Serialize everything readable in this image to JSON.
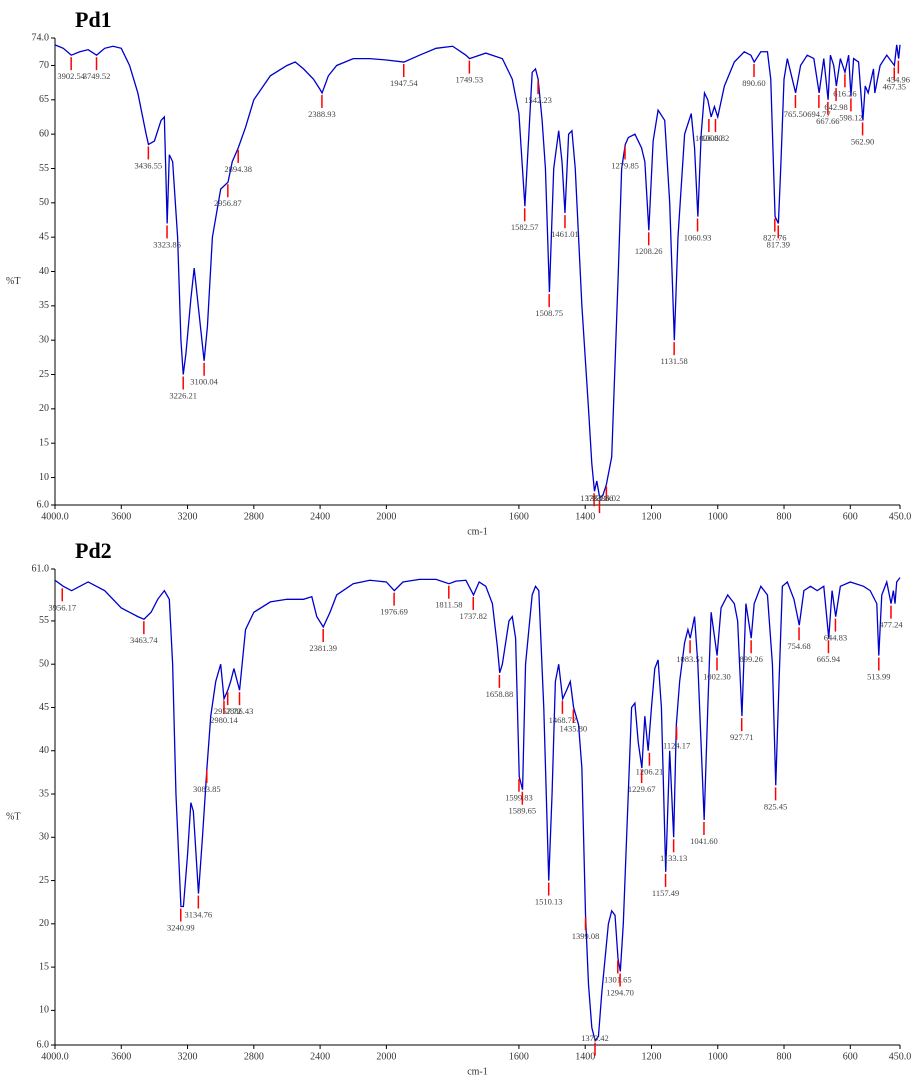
{
  "chart_data": [
    {
      "type": "line",
      "title": "Pd1",
      "x_label": "cm-1",
      "y_label": "%T",
      "color": "#0000cc",
      "peak_color": "#ff0000",
      "xlim": [
        4000,
        450
      ],
      "ylim": [
        6,
        74
      ],
      "x_scale_break": 2000,
      "x_scale_ratio_below_break": 2,
      "xticks": [
        {
          "value": 4000,
          "label": "4000.0"
        },
        3600,
        3200,
        2800,
        2400,
        2000,
        1600,
        1400,
        1200,
        1000,
        800,
        600,
        {
          "value": 450,
          "label": "450.0"
        }
      ],
      "yticks": [
        {
          "value": 6,
          "label": "6.0"
        },
        10,
        15,
        20,
        25,
        30,
        35,
        40,
        45,
        50,
        55,
        60,
        65,
        70,
        {
          "value": 74,
          "label": "74.0"
        }
      ],
      "x": [
        4000,
        3950,
        3902,
        3850,
        3800,
        3749,
        3700,
        3650,
        3600,
        3550,
        3500,
        3450,
        3436,
        3400,
        3360,
        3340,
        3323,
        3310,
        3290,
        3260,
        3240,
        3226,
        3210,
        3180,
        3160,
        3140,
        3100,
        3080,
        3050,
        3000,
        2956,
        2930,
        2894,
        2850,
        2800,
        2700,
        2600,
        2550,
        2500,
        2440,
        2400,
        2388,
        2350,
        2300,
        2200,
        2100,
        2000,
        1947,
        1900,
        1850,
        1800,
        1760,
        1749,
        1700,
        1650,
        1620,
        1600,
        1582,
        1570,
        1560,
        1550,
        1542,
        1530,
        1520,
        1508,
        1495,
        1480,
        1470,
        1461,
        1450,
        1440,
        1430,
        1410,
        1390,
        1380,
        1372,
        1365,
        1356,
        1346,
        1336,
        1320,
        1300,
        1290,
        1279,
        1270,
        1250,
        1230,
        1220,
        1208,
        1195,
        1180,
        1160,
        1145,
        1131,
        1120,
        1100,
        1080,
        1070,
        1060,
        1050,
        1040,
        1030,
        1020,
        1010,
        1000,
        980,
        950,
        920,
        900,
        890,
        870,
        850,
        840,
        827,
        817,
        810,
        800,
        790,
        780,
        765,
        750,
        730,
        710,
        694,
        680,
        667,
        660,
        650,
        642,
        630,
        616,
        605,
        598,
        590,
        575,
        562,
        555,
        546,
        530,
        526,
        510,
        490,
        467,
        460,
        454,
        450
      ],
      "values": [
        73,
        72.5,
        71.5,
        72,
        72.3,
        71.5,
        72.5,
        72.8,
        72.5,
        70,
        66,
        60,
        58.5,
        59,
        62,
        62.5,
        47,
        57,
        56,
        45,
        30,
        25,
        28,
        36,
        40.5,
        36,
        27,
        32,
        45,
        52,
        53,
        56,
        58,
        61,
        65,
        68.5,
        70,
        70.5,
        69.5,
        68,
        66.5,
        66,
        68.5,
        70,
        71,
        71,
        70.8,
        70.5,
        71.5,
        72.5,
        72.8,
        71.5,
        71,
        71.8,
        71,
        68,
        63,
        49.5,
        60,
        69,
        69.5,
        68,
        62,
        55,
        37,
        55,
        60.5,
        56,
        48.5,
        60,
        60.5,
        55,
        35,
        20,
        12,
        8,
        9.5,
        7,
        7.5,
        9,
        13,
        40,
        55,
        58.5,
        59.5,
        60,
        58,
        56,
        46,
        59,
        63.5,
        62,
        50,
        30,
        45,
        60,
        63,
        58,
        48,
        60,
        66,
        65,
        62.5,
        64,
        62.5,
        67,
        70.5,
        72,
        71.5,
        70.5,
        72,
        72,
        68,
        48,
        47,
        55,
        68,
        71,
        69,
        66,
        70,
        71.5,
        71,
        66,
        71,
        65,
        71.5,
        70,
        67,
        71,
        69,
        71.5,
        65.5,
        71,
        70.5,
        62,
        67,
        66,
        69.5,
        66,
        70,
        71.5,
        70,
        73,
        71,
        73
      ],
      "peaks": [
        3902.54,
        3749.52,
        3436.55,
        3323.86,
        3226.21,
        3100.04,
        2956.87,
        2894.38,
        2388.93,
        1947.54,
        1749.53,
        1582.57,
        1542.23,
        1508.75,
        1461.01,
        1373.21,
        1356.86,
        1336.02,
        1279.85,
        1208.26,
        1131.58,
        1060.93,
        1026.8,
        1006.82,
        890.6,
        827.76,
        817.39,
        765.5,
        694.77,
        667.66,
        642.98,
        616.26,
        598.12,
        562.9,
        467.35,
        454.96
      ],
      "peak_labels": [
        "3902.54",
        "3749.52",
        "3436.55",
        "3323.86",
        "3226.21",
        "3100.04",
        "2956.87",
        "2894.38",
        "2388.93",
        "1947.54",
        "1749.53",
        "1582.57",
        "1542.23",
        "1508.75",
        "1461.01",
        "1373.21",
        "1356.86",
        "1336.02",
        "1279.85",
        "1208.26",
        "1131.58",
        "1060.93",
        "1026.80",
        "1006.82",
        "890.60",
        "827.76",
        "817.39",
        "765.50",
        "694.77",
        "667.66",
        "642.98",
        "616.26",
        "598.12",
        "562.90",
        "467.35",
        "454.96"
      ],
      "peak_values": [
        71.5,
        71.5,
        58.5,
        47,
        25,
        27,
        53,
        58,
        66,
        70.5,
        71,
        49.5,
        68,
        37,
        48.5,
        8,
        7,
        9,
        58.5,
        46,
        30,
        48,
        62.5,
        62.5,
        70.5,
        48,
        47,
        66,
        66,
        65,
        67,
        69,
        65.5,
        62,
        70,
        71
      ]
    },
    {
      "type": "line",
      "title": "Pd2",
      "x_label": "cm-1",
      "y_label": "%T",
      "color": "#0000cc",
      "peak_color": "#ff0000",
      "xlim": [
        4000,
        450
      ],
      "ylim": [
        6,
        61
      ],
      "x_scale_break": 2000,
      "x_scale_ratio_below_break": 2,
      "xticks": [
        {
          "value": 4000,
          "label": "4000.0"
        },
        3600,
        3200,
        2800,
        2400,
        2000,
        1600,
        1400,
        1200,
        1000,
        800,
        600,
        {
          "value": 450,
          "label": "450.0"
        }
      ],
      "yticks": [
        {
          "value": 6,
          "label": "6.0"
        },
        10,
        15,
        20,
        25,
        30,
        35,
        40,
        45,
        50,
        55,
        {
          "value": 61,
          "label": "61.0"
        }
      ],
      "x": [
        4000,
        3950,
        3900,
        3800,
        3700,
        3600,
        3500,
        3463,
        3420,
        3380,
        3340,
        3310,
        3290,
        3270,
        3240,
        3225,
        3200,
        3180,
        3165,
        3134,
        3110,
        3083,
        3060,
        3030,
        3000,
        2980,
        2957,
        2940,
        2920,
        2900,
        2886,
        2850,
        2800,
        2700,
        2600,
        2500,
        2450,
        2420,
        2381,
        2340,
        2300,
        2200,
        2100,
        2000,
        1976,
        1950,
        1900,
        1850,
        1811,
        1790,
        1760,
        1737,
        1720,
        1700,
        1680,
        1665,
        1658,
        1650,
        1630,
        1620,
        1610,
        1599,
        1589,
        1580,
        1560,
        1550,
        1540,
        1525,
        1510,
        1500,
        1490,
        1480,
        1468,
        1456,
        1445,
        1435,
        1420,
        1410,
        1399,
        1390,
        1380,
        1370,
        1360,
        1350,
        1330,
        1320,
        1310,
        1301,
        1294,
        1285,
        1270,
        1260,
        1250,
        1240,
        1229,
        1220,
        1210,
        1200,
        1190,
        1180,
        1170,
        1157,
        1145,
        1133,
        1125,
        1115,
        1100,
        1090,
        1083,
        1070,
        1060,
        1041,
        1030,
        1020,
        1002,
        990,
        970,
        950,
        940,
        927,
        915,
        899,
        890,
        870,
        850,
        835,
        825,
        815,
        805,
        790,
        770,
        754,
        740,
        720,
        700,
        680,
        665,
        655,
        644,
        630,
        600,
        560,
        540,
        520,
        514,
        505,
        490,
        477,
        470,
        465,
        460,
        450
      ],
      "values": [
        59.7,
        59,
        58.5,
        59.5,
        58.5,
        56.5,
        55.5,
        55.2,
        56,
        57.5,
        58.5,
        57.5,
        50,
        35,
        22,
        22,
        28,
        34,
        33,
        23.5,
        30,
        38,
        44,
        48,
        50,
        46,
        47,
        48,
        49.5,
        48,
        47,
        54,
        56,
        57.2,
        57.5,
        57.5,
        57.8,
        55.5,
        54.3,
        56,
        58,
        59.3,
        59.7,
        59.5,
        58.5,
        59.5,
        59.8,
        59.8,
        59.3,
        59.6,
        59.7,
        58,
        59.5,
        59,
        57,
        52,
        49,
        50,
        55,
        55.5,
        53,
        37,
        35.5,
        50,
        58,
        59,
        58.5,
        45,
        25,
        35,
        48,
        50,
        46,
        47,
        48,
        45,
        43,
        38,
        21,
        13,
        8,
        6.5,
        7,
        12,
        20,
        21.5,
        21,
        16,
        14.5,
        20,
        35,
        45,
        45.5,
        41,
        38,
        44,
        40,
        45,
        49.5,
        50.5,
        45,
        26,
        40,
        30,
        43,
        48,
        52.5,
        54,
        53,
        55.5,
        50,
        32,
        45,
        56,
        51,
        56.5,
        58,
        57,
        55,
        44,
        57,
        53,
        57,
        59,
        58,
        50,
        36,
        48,
        59,
        59.5,
        57.5,
        54.5,
        58.5,
        59,
        58.5,
        59,
        53,
        58.5,
        55.5,
        59,
        59.5,
        59,
        58.5,
        57,
        51,
        58,
        59.5,
        57,
        58.5,
        57,
        59.5,
        60
      ],
      "peaks": [
        3956.17,
        3463.74,
        3240.99,
        3134.76,
        3083.85,
        2980.14,
        2957.72,
        2886.43,
        2381.39,
        1976.69,
        1811.58,
        1737.82,
        1658.88,
        1599.83,
        1589.65,
        1510.13,
        1468.72,
        1435.8,
        1399.08,
        1370.42,
        1301.65,
        1294.7,
        1229.67,
        1206.21,
        1157.49,
        1133.13,
        1124.17,
        1083.51,
        1041.6,
        1002.3,
        927.71,
        899.26,
        825.45,
        754.68,
        665.94,
        644.83,
        513.99,
        477.24
      ],
      "peak_labels": [
        "3956.17",
        "3463.74",
        "3240.99",
        "3134.76",
        "3083.85",
        "2980.14",
        "2957.72",
        "2886.43",
        "2381.39",
        "1976.69",
        "1811.58",
        "1737.82",
        "1658.88",
        "1599.83",
        "1589.65",
        "1510.13",
        "1468.72",
        "1435.80",
        "1399.08",
        "1370.42",
        "1301.65",
        "1294.70",
        "1229.67",
        "1206.21",
        "1157.49",
        "1133.13",
        "1124.17",
        "1083.51",
        "1041.60",
        "1002.30",
        "927.71",
        "899.26",
        "825.45",
        "754.68",
        "665.94",
        "644.83",
        "513.99",
        "477.24"
      ],
      "peak_values": [
        59,
        55.2,
        22,
        23.5,
        38,
        46,
        47,
        47,
        54.3,
        58.5,
        59.3,
        58,
        49,
        37,
        35.5,
        25,
        46,
        45,
        21,
        6.5,
        16,
        14.5,
        38,
        40,
        26,
        30,
        43,
        53,
        32,
        51,
        44,
        53,
        36,
        54.5,
        53,
        55.5,
        51,
        57
      ]
    }
  ]
}
